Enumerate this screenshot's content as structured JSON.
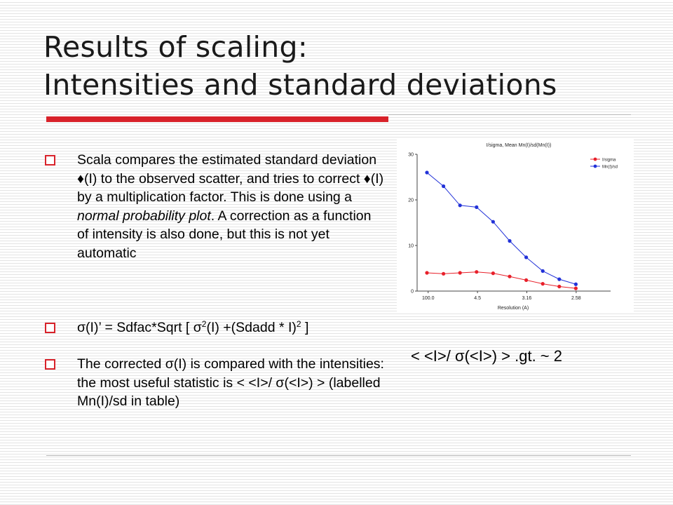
{
  "slide": {
    "title_line1": "Results of scaling:",
    "title_line2": "Intensities and standard deviations",
    "bullets": {
      "b1_text": "Scala compares the estimated standard deviation ♦(I) to the observed scatter, and tries to correct ♦(I) by a multiplication factor. This is done using a ",
      "b1_emph": "normal probability plot",
      "b1_tail": ". A correction as a function of intensity is also done, but this is not yet automatic",
      "b2_a": "σ(I)’ = Sdfac*Sqrt [ σ",
      "b2_sup1": "2",
      "b2_b": "(I) +(Sdadd * I)",
      "b2_sup2": "2",
      "b2_c": " ]",
      "b3_text": "The corrected σ(I) is compared with the intensities: the most useful statistic is < <I>/ σ(<I>) >  (labelled Mn(I)/sd in table)"
    },
    "formula": "< <I>/ σ(<I>) >   .gt. ~ 2"
  },
  "chart_data": {
    "type": "line",
    "title": "I/sigma, Mean Mn(I)/sd(Mn(I))",
    "xlabel": "Resolution (A)",
    "x_tick_labels": [
      "100.0",
      "4.5",
      "3.16",
      "2.58"
    ],
    "y_ticks": [
      0,
      10,
      20,
      30
    ],
    "ylim": [
      0,
      30
    ],
    "xlim": [
      0,
      9
    ],
    "legend_position": "top-right",
    "x": [
      1,
      2,
      3,
      4,
      5,
      6,
      7,
      8,
      9,
      10
    ],
    "series": [
      {
        "name": "I/sigma",
        "color": "#e8202a",
        "values": [
          4.0,
          3.8,
          4.0,
          4.2,
          3.9,
          3.2,
          2.4,
          1.6,
          1.0,
          0.6
        ]
      },
      {
        "name": "Mn(I)/sd",
        "color": "#2232d8",
        "values": [
          26.0,
          23.0,
          18.8,
          18.4,
          15.2,
          11.0,
          7.4,
          4.4,
          2.6,
          1.5
        ]
      }
    ]
  }
}
